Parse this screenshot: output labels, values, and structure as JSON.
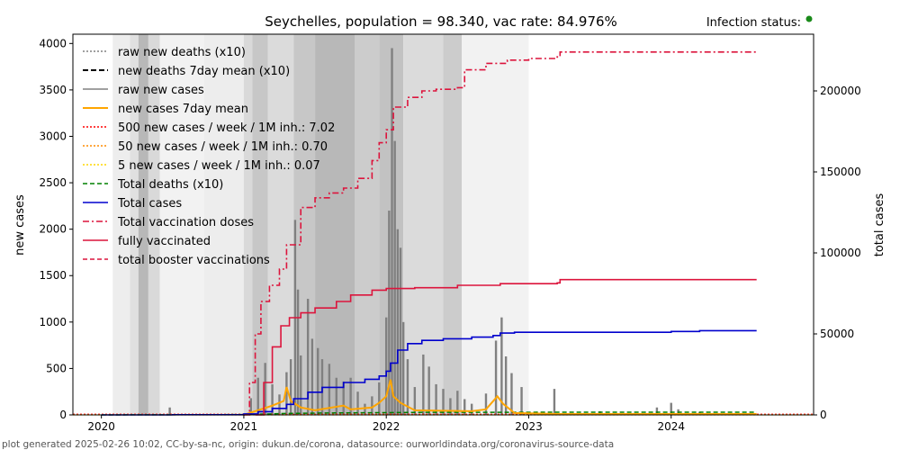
{
  "chart_data": {
    "type": "line",
    "title": "Seychelles, population = 98.340, vac rate: 84.976%",
    "status_label": "Infection status:",
    "status_color": "#1a8a1a",
    "ylabel_left": "new cases",
    "ylabel_right": "total cases",
    "footer": "plot generated 2025-02-26 10:02, CC-by-sa-nc, origin: dukun.de/corona, datasource: ourworldindata.org/coronavirus-source-data",
    "x_ticks": [
      {
        "label": "2020",
        "year": 2020.0
      },
      {
        "label": "2021",
        "year": 2021.0
      },
      {
        "label": "2022",
        "year": 2022.0
      },
      {
        "label": "2023",
        "year": 2023.0
      },
      {
        "label": "2024",
        "year": 2024.0
      }
    ],
    "xlim": [
      2019.8,
      2025.0
    ],
    "ylim_left": [
      0,
      4100
    ],
    "ylim_right": [
      0,
      235000
    ],
    "yticks_left": [
      {
        "label": "0",
        "v": 0
      },
      {
        "label": "500",
        "v": 500
      },
      {
        "label": "1000",
        "v": 1000
      },
      {
        "label": "1500",
        "v": 1500
      },
      {
        "label": "2000",
        "v": 2000
      },
      {
        "label": "2500",
        "v": 2500
      },
      {
        "label": "3000",
        "v": 3000
      },
      {
        "label": "3500",
        "v": 3500
      },
      {
        "label": "4000",
        "v": 4000
      }
    ],
    "yticks_right": [
      {
        "label": "0",
        "v": 0
      },
      {
        "label": "50000",
        "v": 50000
      },
      {
        "label": "100000",
        "v": 100000
      },
      {
        "label": "150000",
        "v": 150000
      },
      {
        "label": "200000",
        "v": 200000
      }
    ],
    "legend": [
      {
        "label": "raw new deaths (x10)",
        "color": "#808080",
        "dash": "2,2",
        "width": 1.5
      },
      {
        "label": "new deaths 7day mean (x10)",
        "color": "#000000",
        "dash": "6,3",
        "width": 2
      },
      {
        "label": "raw new cases",
        "color": "#808080",
        "dash": "",
        "width": 1.5
      },
      {
        "label": "new cases 7day mean",
        "color": "#ffa500",
        "dash": "",
        "width": 2
      },
      {
        "label": "500 new cases / week / 1M inh.: 7.02",
        "color": "#ff0000",
        "dash": "2,2",
        "width": 1.5
      },
      {
        "label": "50 new cases / week / 1M inh.: 0.70",
        "color": "#ff8c00",
        "dash": "2,2",
        "width": 1.5
      },
      {
        "label": "5 new cases / week / 1M inh.: 0.07",
        "color": "#ffd700",
        "dash": "2,2",
        "width": 1.5
      },
      {
        "label": "Total deaths (x10)",
        "color": "#008000",
        "dash": "5,3",
        "width": 1.5
      },
      {
        "label": "Total cases",
        "color": "#0000cd",
        "dash": "",
        "width": 1.5
      },
      {
        "label": "Total vaccination doses",
        "color": "#dc143c",
        "dash": "7,3,2,3",
        "width": 1.5
      },
      {
        "label": "fully vaccinated",
        "color": "#dc143c",
        "dash": "",
        "width": 1.5
      },
      {
        "label": "total booster vaccinations",
        "color": "#dc143c",
        "dash": "5,3",
        "width": 1.5
      }
    ],
    "shading": [
      {
        "x0": 2020.08,
        "x1": 2020.2,
        "g": 0.93
      },
      {
        "x0": 2020.2,
        "x1": 2020.26,
        "g": 0.88
      },
      {
        "x0": 2020.26,
        "x1": 2020.33,
        "g": 0.72
      },
      {
        "x0": 2020.33,
        "x1": 2020.41,
        "g": 0.85
      },
      {
        "x0": 2020.41,
        "x1": 2020.72,
        "g": 0.95
      },
      {
        "x0": 2020.72,
        "x1": 2021.0,
        "g": 0.93
      },
      {
        "x0": 2021.0,
        "x1": 2021.06,
        "g": 0.85
      },
      {
        "x0": 2021.06,
        "x1": 2021.17,
        "g": 0.78
      },
      {
        "x0": 2021.17,
        "x1": 2021.35,
        "g": 0.86
      },
      {
        "x0": 2021.35,
        "x1": 2021.5,
        "g": 0.78
      },
      {
        "x0": 2021.5,
        "x1": 2021.78,
        "g": 0.72
      },
      {
        "x0": 2021.78,
        "x1": 2021.95,
        "g": 0.8
      },
      {
        "x0": 2021.95,
        "x1": 2022.12,
        "g": 0.76
      },
      {
        "x0": 2022.12,
        "x1": 2022.4,
        "g": 0.86
      },
      {
        "x0": 2022.4,
        "x1": 2022.53,
        "g": 0.8
      },
      {
        "x0": 2022.53,
        "x1": 2023.0,
        "g": 0.95
      }
    ],
    "total_vaccination_doses": [
      [
        2021.0,
        0
      ],
      [
        2021.04,
        20000
      ],
      [
        2021.08,
        50000
      ],
      [
        2021.12,
        70000
      ],
      [
        2021.18,
        80000
      ],
      [
        2021.25,
        90000
      ],
      [
        2021.3,
        105000
      ],
      [
        2021.4,
        128000
      ],
      [
        2021.5,
        134000
      ],
      [
        2021.6,
        137000
      ],
      [
        2021.7,
        140000
      ],
      [
        2021.8,
        146000
      ],
      [
        2021.9,
        157000
      ],
      [
        2021.95,
        168000
      ],
      [
        2022.0,
        176000
      ],
      [
        2022.05,
        190000
      ],
      [
        2022.15,
        196000
      ],
      [
        2022.25,
        200000
      ],
      [
        2022.35,
        201000
      ],
      [
        2022.5,
        202000
      ],
      [
        2022.55,
        213000
      ],
      [
        2022.7,
        217000
      ],
      [
        2022.85,
        219000
      ],
      [
        2023.0,
        220000
      ],
      [
        2023.2,
        221000
      ],
      [
        2023.22,
        224000
      ],
      [
        2024.6,
        224000
      ]
    ],
    "fully_vaccinated": [
      [
        2021.08,
        0
      ],
      [
        2021.14,
        20000
      ],
      [
        2021.2,
        42000
      ],
      [
        2021.26,
        55000
      ],
      [
        2021.32,
        60000
      ],
      [
        2021.4,
        63000
      ],
      [
        2021.5,
        66000
      ],
      [
        2021.65,
        70000
      ],
      [
        2021.75,
        74000
      ],
      [
        2021.9,
        77000
      ],
      [
        2022.0,
        78000
      ],
      [
        2022.2,
        78500
      ],
      [
        2022.5,
        80000
      ],
      [
        2022.8,
        81000
      ],
      [
        2023.2,
        81500
      ],
      [
        2023.22,
        83500
      ],
      [
        2024.6,
        83500
      ]
    ],
    "total_cases": [
      [
        2020.0,
        0
      ],
      [
        2020.5,
        100
      ],
      [
        2021.0,
        600
      ],
      [
        2021.1,
        2000
      ],
      [
        2021.2,
        4000
      ],
      [
        2021.3,
        6500
      ],
      [
        2021.35,
        10000
      ],
      [
        2021.45,
        14000
      ],
      [
        2021.55,
        17000
      ],
      [
        2021.7,
        20000
      ],
      [
        2021.85,
        22000
      ],
      [
        2021.95,
        24000
      ],
      [
        2022.0,
        27000
      ],
      [
        2022.03,
        32000
      ],
      [
        2022.08,
        40000
      ],
      [
        2022.15,
        44000
      ],
      [
        2022.25,
        46000
      ],
      [
        2022.4,
        47000
      ],
      [
        2022.6,
        48000
      ],
      [
        2022.75,
        49000
      ],
      [
        2022.8,
        50500
      ],
      [
        2022.9,
        51000
      ],
      [
        2023.0,
        51000
      ],
      [
        2023.5,
        51000
      ],
      [
        2024.0,
        51500
      ],
      [
        2024.2,
        52000
      ],
      [
        2024.6,
        52000
      ]
    ],
    "total_deaths_x10": [
      [
        2020.0,
        0
      ],
      [
        2021.0,
        200
      ],
      [
        2021.3,
        900
      ],
      [
        2021.6,
        1200
      ],
      [
        2022.0,
        1400
      ],
      [
        2022.3,
        1600
      ],
      [
        2024.6,
        1700
      ]
    ],
    "raw_new_cases_peaks": [
      [
        2020.48,
        80
      ],
      [
        2021.05,
        180
      ],
      [
        2021.1,
        400
      ],
      [
        2021.15,
        560
      ],
      [
        2021.2,
        330
      ],
      [
        2021.25,
        220
      ],
      [
        2021.3,
        460
      ],
      [
        2021.33,
        600
      ],
      [
        2021.36,
        2100
      ],
      [
        2021.38,
        1350
      ],
      [
        2021.4,
        640
      ],
      [
        2021.45,
        1250
      ],
      [
        2021.48,
        820
      ],
      [
        2021.52,
        720
      ],
      [
        2021.55,
        600
      ],
      [
        2021.6,
        550
      ],
      [
        2021.65,
        400
      ],
      [
        2021.7,
        360
      ],
      [
        2021.75,
        400
      ],
      [
        2021.8,
        250
      ],
      [
        2021.85,
        120
      ],
      [
        2021.9,
        200
      ],
      [
        2021.95,
        350
      ],
      [
        2022.0,
        1050
      ],
      [
        2022.02,
        2200
      ],
      [
        2022.04,
        3950
      ],
      [
        2022.06,
        2950
      ],
      [
        2022.08,
        2000
      ],
      [
        2022.1,
        1800
      ],
      [
        2022.12,
        1000
      ],
      [
        2022.15,
        600
      ],
      [
        2022.2,
        300
      ],
      [
        2022.26,
        650
      ],
      [
        2022.3,
        520
      ],
      [
        2022.35,
        330
      ],
      [
        2022.4,
        280
      ],
      [
        2022.45,
        180
      ],
      [
        2022.5,
        260
      ],
      [
        2022.55,
        170
      ],
      [
        2022.6,
        120
      ],
      [
        2022.7,
        230
      ],
      [
        2022.77,
        800
      ],
      [
        2022.81,
        1050
      ],
      [
        2022.84,
        630
      ],
      [
        2022.88,
        450
      ],
      [
        2022.95,
        300
      ],
      [
        2023.18,
        280
      ],
      [
        2023.5,
        40
      ],
      [
        2023.9,
        80
      ],
      [
        2024.0,
        130
      ],
      [
        2024.05,
        60
      ],
      [
        2024.2,
        30
      ]
    ],
    "new_cases_7day_mean": [
      [
        2021.0,
        0
      ],
      [
        2021.2,
        100
      ],
      [
        2021.28,
        150
      ],
      [
        2021.3,
        300
      ],
      [
        2021.33,
        150
      ],
      [
        2021.4,
        80
      ],
      [
        2021.5,
        50
      ],
      [
        2021.7,
        100
      ],
      [
        2021.75,
        60
      ],
      [
        2021.9,
        80
      ],
      [
        2021.95,
        130
      ],
      [
        2022.0,
        200
      ],
      [
        2022.03,
        380
      ],
      [
        2022.05,
        200
      ],
      [
        2022.1,
        130
      ],
      [
        2022.2,
        50
      ],
      [
        2022.6,
        40
      ],
      [
        2022.7,
        60
      ],
      [
        2022.78,
        200
      ],
      [
        2022.82,
        120
      ],
      [
        2022.9,
        20
      ],
      [
        2023.2,
        10
      ],
      [
        2024.6,
        10
      ]
    ]
  }
}
